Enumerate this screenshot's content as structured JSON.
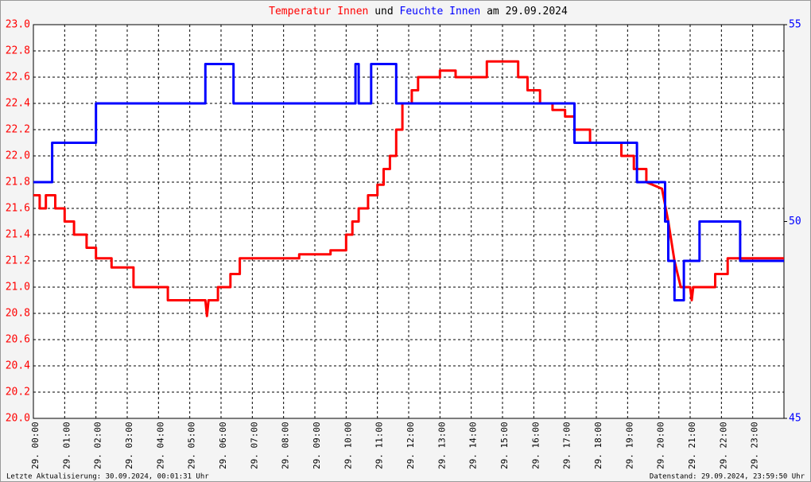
{
  "chart_data": {
    "type": "line",
    "title": {
      "series_0": "Temperatur Innen",
      "join": "und",
      "series_1": "Feuchte Innen",
      "date": "am 29.09.2024"
    },
    "footer_left": "Letzte Aktualisierung: 30.09.2024, 00:01:31 Uhr",
    "footer_right": "Datenstand: 29.09.2024, 23:59:50 Uhr",
    "xlim": [
      0,
      24
    ],
    "xticks": [
      {
        "value": 0,
        "label": "29. 00:00"
      },
      {
        "value": 1,
        "label": "29. 01:00"
      },
      {
        "value": 2,
        "label": "29. 02:00"
      },
      {
        "value": 3,
        "label": "29. 03:00"
      },
      {
        "value": 4,
        "label": "29. 04:00"
      },
      {
        "value": 5,
        "label": "29. 05:00"
      },
      {
        "value": 6,
        "label": "29. 06:00"
      },
      {
        "value": 7,
        "label": "29. 07:00"
      },
      {
        "value": 8,
        "label": "29. 08:00"
      },
      {
        "value": 9,
        "label": "29. 09:00"
      },
      {
        "value": 10,
        "label": "29. 10:00"
      },
      {
        "value": 11,
        "label": "29. 11:00"
      },
      {
        "value": 12,
        "label": "29. 12:00"
      },
      {
        "value": 13,
        "label": "29. 13:00"
      },
      {
        "value": 14,
        "label": "29. 14:00"
      },
      {
        "value": 15,
        "label": "29. 15:00"
      },
      {
        "value": 16,
        "label": "29. 16:00"
      },
      {
        "value": 17,
        "label": "29. 17:00"
      },
      {
        "value": 18,
        "label": "29. 18:00"
      },
      {
        "value": 19,
        "label": "29. 19:00"
      },
      {
        "value": 20,
        "label": "29. 20:00"
      },
      {
        "value": 21,
        "label": "29. 21:00"
      },
      {
        "value": 22,
        "label": "29. 22:00"
      },
      {
        "value": 23,
        "label": "29. 23:00"
      }
    ],
    "ylim": [
      20,
      23
    ],
    "yticks": [
      {
        "value": 20,
        "label": "20.0"
      },
      20.2,
      20.4,
      20.6,
      20.8,
      {
        "value": 21,
        "label": "21.0"
      },
      21.2,
      21.4,
      21.6,
      21.8,
      {
        "value": 22,
        "label": "22.0"
      },
      22.2,
      22.4,
      22.6,
      22.8,
      {
        "value": 23,
        "label": "23.0"
      }
    ],
    "y2lim": [
      45,
      55
    ],
    "y2ticks": [
      45,
      50,
      55
    ],
    "grid": true,
    "series": [
      {
        "name": "Temperatur Innen",
        "color": "#ff0000",
        "x": [
          0,
          0.2,
          0.2,
          0.4,
          0.4,
          0.7,
          0.7,
          1.0,
          1.0,
          1.3,
          1.3,
          1.7,
          1.7,
          2.0,
          2.0,
          2.5,
          2.5,
          3.2,
          3.2,
          4.3,
          4.3,
          5.5,
          5.55,
          5.6,
          5.9,
          5.9,
          6.3,
          6.3,
          6.6,
          6.6,
          8.5,
          8.5,
          9.5,
          9.5,
          10.0,
          10.0,
          10.2,
          10.2,
          10.4,
          10.4,
          10.7,
          10.7,
          11.0,
          11.0,
          11.2,
          11.2,
          11.4,
          11.4,
          11.6,
          11.6,
          11.8,
          11.8,
          12.1,
          12.1,
          12.3,
          12.3,
          13.0,
          13.0,
          13.5,
          13.5,
          14.5,
          14.5,
          15.5,
          15.5,
          15.8,
          15.8,
          16.2,
          16.2,
          16.6,
          16.6,
          17.0,
          17.0,
          17.3,
          17.3,
          17.8,
          17.8,
          18.8,
          18.8,
          19.2,
          19.2,
          19.6,
          19.6,
          20.1,
          20.3,
          20.5,
          20.7,
          21.0,
          21.05,
          21.1,
          21.8,
          21.8,
          22.2,
          22.2,
          24
        ],
        "values": [
          21.7,
          21.7,
          21.6,
          21.6,
          21.7,
          21.7,
          21.6,
          21.6,
          21.5,
          21.5,
          21.4,
          21.4,
          21.3,
          21.3,
          21.22,
          21.22,
          21.15,
          21.15,
          21.0,
          21.0,
          20.9,
          20.9,
          20.78,
          20.9,
          20.9,
          21.0,
          21.0,
          21.1,
          21.1,
          21.22,
          21.22,
          21.25,
          21.25,
          21.28,
          21.28,
          21.4,
          21.4,
          21.5,
          21.5,
          21.6,
          21.6,
          21.7,
          21.7,
          21.78,
          21.78,
          21.9,
          21.9,
          22.0,
          22.0,
          22.2,
          22.2,
          22.4,
          22.4,
          22.5,
          22.5,
          22.6,
          22.6,
          22.65,
          22.65,
          22.6,
          22.6,
          22.72,
          22.72,
          22.6,
          22.6,
          22.5,
          22.5,
          22.4,
          22.4,
          22.35,
          22.35,
          22.3,
          22.3,
          22.2,
          22.2,
          22.1,
          22.1,
          22.0,
          22.0,
          21.9,
          21.9,
          21.8,
          21.75,
          21.5,
          21.2,
          21.0,
          21.0,
          20.9,
          21.0,
          21.0,
          21.1,
          21.1,
          21.22,
          21.22
        ]
      },
      {
        "name": "Feuchte Innen",
        "color": "#0000ff",
        "axis": "y2",
        "x": [
          0,
          0.6,
          0.6,
          2.0,
          2.0,
          5.5,
          5.5,
          6.4,
          6.4,
          10.3,
          10.3,
          10.4,
          10.4,
          10.8,
          10.8,
          11.6,
          11.6,
          17.3,
          17.3,
          19.3,
          19.3,
          20.2,
          20.2,
          20.3,
          20.3,
          20.5,
          20.5,
          20.8,
          20.8,
          21.3,
          21.3,
          22.6,
          22.6,
          24
        ],
        "values": [
          51,
          51,
          52,
          52,
          53,
          53,
          54,
          54,
          53,
          53,
          54,
          54,
          53,
          53,
          54,
          54,
          53,
          53,
          52,
          52,
          51,
          51,
          50,
          50,
          49,
          49,
          48,
          48,
          49,
          49,
          50,
          50,
          49,
          49
        ]
      }
    ]
  }
}
